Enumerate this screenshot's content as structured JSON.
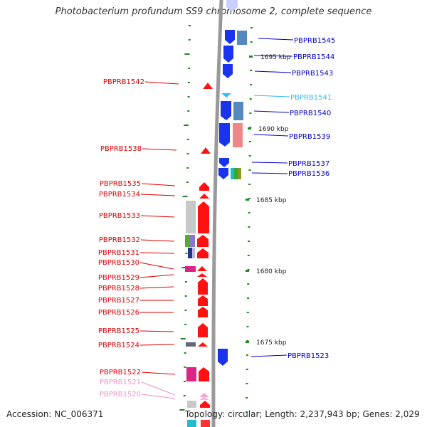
{
  "title": "Photobacterium profundum SS9 chromosome 2, complete sequence",
  "footer": {
    "accession": "Accession: NC_006371",
    "summary": "Topology: circular; Length: 2,237,943 bp; Genes: 2,029"
  },
  "colors": {
    "forward_label": "#0000cc",
    "reverse_label": "#dd0000",
    "pseudo_reverse_label": "#f090c8",
    "light_blue_label": "#33bbee",
    "forward_gene": "#1a33ee",
    "reverse_gene": "#ff1111",
    "tick": "#228822",
    "backbone": "#999999"
  },
  "kbp_labels": [
    "1695 kbp",
    "1690 kbp",
    "1685 kbp",
    "1680 kbp",
    "1675 kbp"
  ],
  "forward_genes": [
    {
      "label": "PBPRB1545",
      "color": "blue"
    },
    {
      "label": "PBPRB1544",
      "color": "blue"
    },
    {
      "label": "PBPRB1543",
      "color": "blue"
    },
    {
      "label": "PBPRB1541",
      "color": "lightblue"
    },
    {
      "label": "PBPRB1540",
      "color": "blue"
    },
    {
      "label": "PBPRB1539",
      "color": "blue"
    },
    {
      "label": "PBPRB1537",
      "color": "blue"
    },
    {
      "label": "PBPRB1536",
      "color": "blue"
    },
    {
      "label": "PBPRB1523",
      "color": "blue"
    }
  ],
  "reverse_genes": [
    {
      "label": "PBPRB1542",
      "color": "red"
    },
    {
      "label": "PBPRB1538",
      "color": "red"
    },
    {
      "label": "PBPRB1535",
      "color": "red"
    },
    {
      "label": "PBPRB1534",
      "color": "red"
    },
    {
      "label": "PBPRB1533",
      "color": "red"
    },
    {
      "label": "PBPRB1532",
      "color": "red"
    },
    {
      "label": "PBPRB1531",
      "color": "red"
    },
    {
      "label": "PBPRB1530",
      "color": "red"
    },
    {
      "label": "PBPRB1529",
      "color": "red"
    },
    {
      "label": "PBPRB1528",
      "color": "red"
    },
    {
      "label": "PBPRB1527",
      "color": "red"
    },
    {
      "label": "PBPRB1526",
      "color": "red"
    },
    {
      "label": "PBPRB1525",
      "color": "red"
    },
    {
      "label": "PBPRB1524",
      "color": "red"
    },
    {
      "label": "PBPRB1522",
      "color": "red"
    },
    {
      "label": "PBPRB1521",
      "color": "pink"
    },
    {
      "label": "PBPRB1520",
      "color": "pink"
    }
  ]
}
